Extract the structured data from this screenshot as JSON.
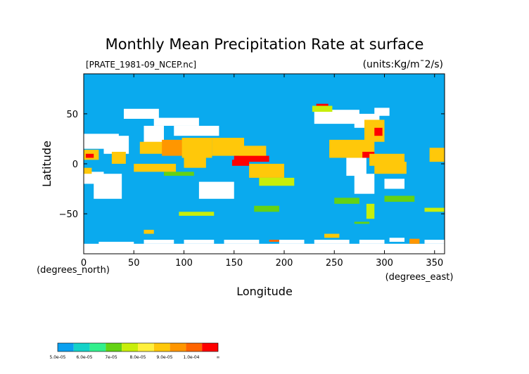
{
  "chart_data": {
    "type": "heatmap",
    "title": "Monthly Mean Precipitation Rate at surface",
    "file_label": "[PRATE_1981-09_NCEP.nc]",
    "units_label": "(units:Kg/m¯2/s)",
    "xlabel": "Longitude",
    "ylabel": "Latitude",
    "x_unit": "(degrees_east)",
    "y_unit": "(degrees_north)",
    "xlim": [
      0,
      360
    ],
    "ylim": [
      -90,
      90
    ],
    "x_ticks": [
      {
        "value": 0,
        "label": "0"
      },
      {
        "value": 50,
        "label": "50"
      },
      {
        "value": 100,
        "label": "100"
      },
      {
        "value": 150,
        "label": "150"
      },
      {
        "value": 200,
        "label": "200"
      },
      {
        "value": 250,
        "label": "250"
      },
      {
        "value": 300,
        "label": "300"
      },
      {
        "value": 350,
        "label": "350"
      }
    ],
    "y_ticks": [
      {
        "value": 50,
        "label": "50"
      },
      {
        "value": 0,
        "label": "0"
      },
      {
        "value": -50,
        "label": "−50"
      }
    ],
    "background_color": "#0aaaee",
    "colorbar": {
      "labels": [
        "5.0e-05",
        "6.0e-05",
        "7e-05",
        "8.0e-05",
        "9.0e-05",
        "1.0e-04",
        "∞"
      ],
      "colors": [
        "#0aa0f0",
        "#14d2c8",
        "#32f08c",
        "#64d214",
        "#c8ee0a",
        "#fff03c",
        "#ffc80a",
        "#ff9600",
        "#ff6400",
        "#ff0000"
      ]
    },
    "regions": [
      {
        "level": 9,
        "lon": [
          232,
          244
        ],
        "lat": [
          56,
          60
        ]
      },
      {
        "level": 4,
        "lon": [
          228,
          248
        ],
        "lat": [
          52,
          58
        ]
      },
      {
        "level": 8,
        "lon": [
          60,
          80
        ],
        "lat": [
          14,
          20
        ]
      },
      {
        "level": 6,
        "lon": [
          56,
          82
        ],
        "lat": [
          10,
          22
        ]
      },
      {
        "level": 9,
        "lon": [
          82,
          100
        ],
        "lat": [
          14,
          20
        ]
      },
      {
        "level": 7,
        "lon": [
          78,
          104
        ],
        "lat": [
          8,
          24
        ]
      },
      {
        "level": 9,
        "lon": [
          102,
          125
        ],
        "lat": [
          12,
          22
        ]
      },
      {
        "level": 6,
        "lon": [
          98,
          128
        ],
        "lat": [
          6,
          26
        ]
      },
      {
        "level": 9,
        "lon": [
          130,
          155
        ],
        "lat": [
          12,
          20
        ]
      },
      {
        "level": 6,
        "lon": [
          128,
          160
        ],
        "lat": [
          8,
          26
        ]
      },
      {
        "level": 9,
        "lon": [
          160,
          178
        ],
        "lat": [
          8,
          14
        ]
      },
      {
        "level": 6,
        "lon": [
          155,
          182
        ],
        "lat": [
          4,
          18
        ]
      },
      {
        "level": 9,
        "lon": [
          150,
          185
        ],
        "lat": [
          2,
          8
        ]
      },
      {
        "level": 9,
        "lon": [
          170,
          195
        ],
        "lat": [
          -10,
          -4
        ]
      },
      {
        "level": 6,
        "lon": [
          165,
          200
        ],
        "lat": [
          -14,
          0
        ]
      },
      {
        "level": 9,
        "lon": [
          105,
          118
        ],
        "lat": [
          0,
          8
        ]
      },
      {
        "level": 6,
        "lon": [
          100,
          122
        ],
        "lat": [
          -4,
          12
        ]
      },
      {
        "level": 9,
        "lon": [
          60,
          80
        ],
        "lat": [
          -6,
          -2
        ]
      },
      {
        "level": 6,
        "lon": [
          50,
          92
        ],
        "lat": [
          -8,
          0
        ]
      },
      {
        "level": 9,
        "lon": [
          148,
          165
        ],
        "lat": [
          -2,
          4
        ]
      },
      {
        "level": 6,
        "lon": [
          0,
          15
        ],
        "lat": [
          4,
          14
        ]
      },
      {
        "level": 9,
        "lon": [
          2,
          10
        ],
        "lat": [
          6,
          10
        ]
      },
      {
        "level": 9,
        "lon": [
          32,
          40
        ],
        "lat": [
          4,
          10
        ]
      },
      {
        "level": 6,
        "lon": [
          28,
          42
        ],
        "lat": [
          0,
          12
        ]
      },
      {
        "level": 9,
        "lon": [
          262,
          280
        ],
        "lat": [
          12,
          20
        ]
      },
      {
        "level": 6,
        "lon": [
          245,
          290
        ],
        "lat": [
          6,
          24
        ]
      },
      {
        "level": 9,
        "lon": [
          278,
          290
        ],
        "lat": [
          6,
          12
        ]
      },
      {
        "level": 9,
        "lon": [
          285,
          310
        ],
        "lat": [
          2,
          8
        ]
      },
      {
        "level": 6,
        "lon": [
          285,
          320
        ],
        "lat": [
          -2,
          10
        ]
      },
      {
        "level": 9,
        "lon": [
          300,
          318
        ],
        "lat": [
          -6,
          0
        ]
      },
      {
        "level": 6,
        "lon": [
          290,
          322
        ],
        "lat": [
          -10,
          2
        ]
      },
      {
        "level": 6,
        "lon": [
          280,
          300
        ],
        "lat": [
          22,
          44
        ]
      },
      {
        "level": 9,
        "lon": [
          290,
          298
        ],
        "lat": [
          28,
          36
        ]
      },
      {
        "level": 9,
        "lon": [
          350,
          360
        ],
        "lat": [
          6,
          12
        ]
      },
      {
        "level": 6,
        "lon": [
          345,
          360
        ],
        "lat": [
          2,
          16
        ]
      },
      {
        "level": 6,
        "lon": [
          0,
          8
        ],
        "lat": [
          -10,
          -4
        ]
      },
      {
        "level": 3,
        "lon": [
          80,
          110
        ],
        "lat": [
          -12,
          -8
        ]
      },
      {
        "level": 4,
        "lon": [
          175,
          210
        ],
        "lat": [
          -22,
          -14
        ]
      },
      {
        "level": 3,
        "lon": [
          250,
          275
        ],
        "lat": [
          -40,
          -34
        ]
      },
      {
        "level": 4,
        "lon": [
          282,
          290
        ],
        "lat": [
          -55,
          -40
        ]
      },
      {
        "level": 3,
        "lon": [
          300,
          330
        ],
        "lat": [
          -38,
          -32
        ]
      },
      {
        "level": 4,
        "lon": [
          340,
          360
        ],
        "lat": [
          -48,
          -44
        ]
      },
      {
        "level": 3,
        "lon": [
          170,
          195
        ],
        "lat": [
          -48,
          -42
        ]
      },
      {
        "level": 4,
        "lon": [
          95,
          130
        ],
        "lat": [
          -52,
          -48
        ]
      },
      {
        "level": 3,
        "lon": [
          270,
          285
        ],
        "lat": [
          -60,
          -58
        ]
      },
      {
        "level": 7,
        "lon": [
          325,
          335
        ],
        "lat": [
          -80,
          -75
        ]
      },
      {
        "level": 8,
        "lon": [
          185,
          195
        ],
        "lat": [
          -78,
          -76
        ]
      },
      {
        "level": 6,
        "lon": [
          240,
          255
        ],
        "lat": [
          -74,
          -70
        ]
      },
      {
        "level": 6,
        "lon": [
          60,
          70
        ],
        "lat": [
          -70,
          -66
        ]
      }
    ],
    "no_data": [
      {
        "lon": [
          40,
          75
        ],
        "lat": [
          45,
          55
        ]
      },
      {
        "lon": [
          70,
          115
        ],
        "lat": [
          38,
          46
        ]
      },
      {
        "lon": [
          90,
          135
        ],
        "lat": [
          28,
          38
        ]
      },
      {
        "lon": [
          60,
          80
        ],
        "lat": [
          20,
          38
        ]
      },
      {
        "lon": [
          0,
          35
        ],
        "lat": [
          15,
          30
        ]
      },
      {
        "lon": [
          20,
          45
        ],
        "lat": [
          10,
          28
        ]
      },
      {
        "lon": [
          10,
          38
        ],
        "lat": [
          -35,
          -10
        ]
      },
      {
        "lon": [
          0,
          20
        ],
        "lat": [
          -20,
          -8
        ]
      },
      {
        "lon": [
          115,
          150
        ],
        "lat": [
          -35,
          -18
        ]
      },
      {
        "lon": [
          270,
          295
        ],
        "lat": [
          36,
          50
        ]
      },
      {
        "lon": [
          230,
          275
        ],
        "lat": [
          40,
          54
        ]
      },
      {
        "lon": [
          290,
          305
        ],
        "lat": [
          48,
          56
        ]
      },
      {
        "lon": [
          262,
          282
        ],
        "lat": [
          -12,
          6
        ]
      },
      {
        "lon": [
          270,
          290
        ],
        "lat": [
          -30,
          -10
        ]
      },
      {
        "lon": [
          300,
          320
        ],
        "lat": [
          -25,
          -15
        ]
      },
      {
        "lon": [
          0,
          360
        ],
        "lat": [
          -90,
          -80
        ]
      },
      {
        "lon": [
          15,
          50
        ],
        "lat": [
          -82,
          -78
        ]
      },
      {
        "lon": [
          60,
          90
        ],
        "lat": [
          -80,
          -76
        ]
      },
      {
        "lon": [
          100,
          130
        ],
        "lat": [
          -80,
          -76
        ]
      },
      {
        "lon": [
          140,
          175
        ],
        "lat": [
          -80,
          -76
        ]
      },
      {
        "lon": [
          195,
          220
        ],
        "lat": [
          -80,
          -76
        ]
      },
      {
        "lon": [
          230,
          265
        ],
        "lat": [
          -80,
          -76
        ]
      },
      {
        "lon": [
          275,
          300
        ],
        "lat": [
          -80,
          -76
        ]
      },
      {
        "lon": [
          305,
          320
        ],
        "lat": [
          -78,
          -74
        ]
      },
      {
        "lon": [
          340,
          360
        ],
        "lat": [
          -80,
          -76
        ]
      }
    ]
  }
}
